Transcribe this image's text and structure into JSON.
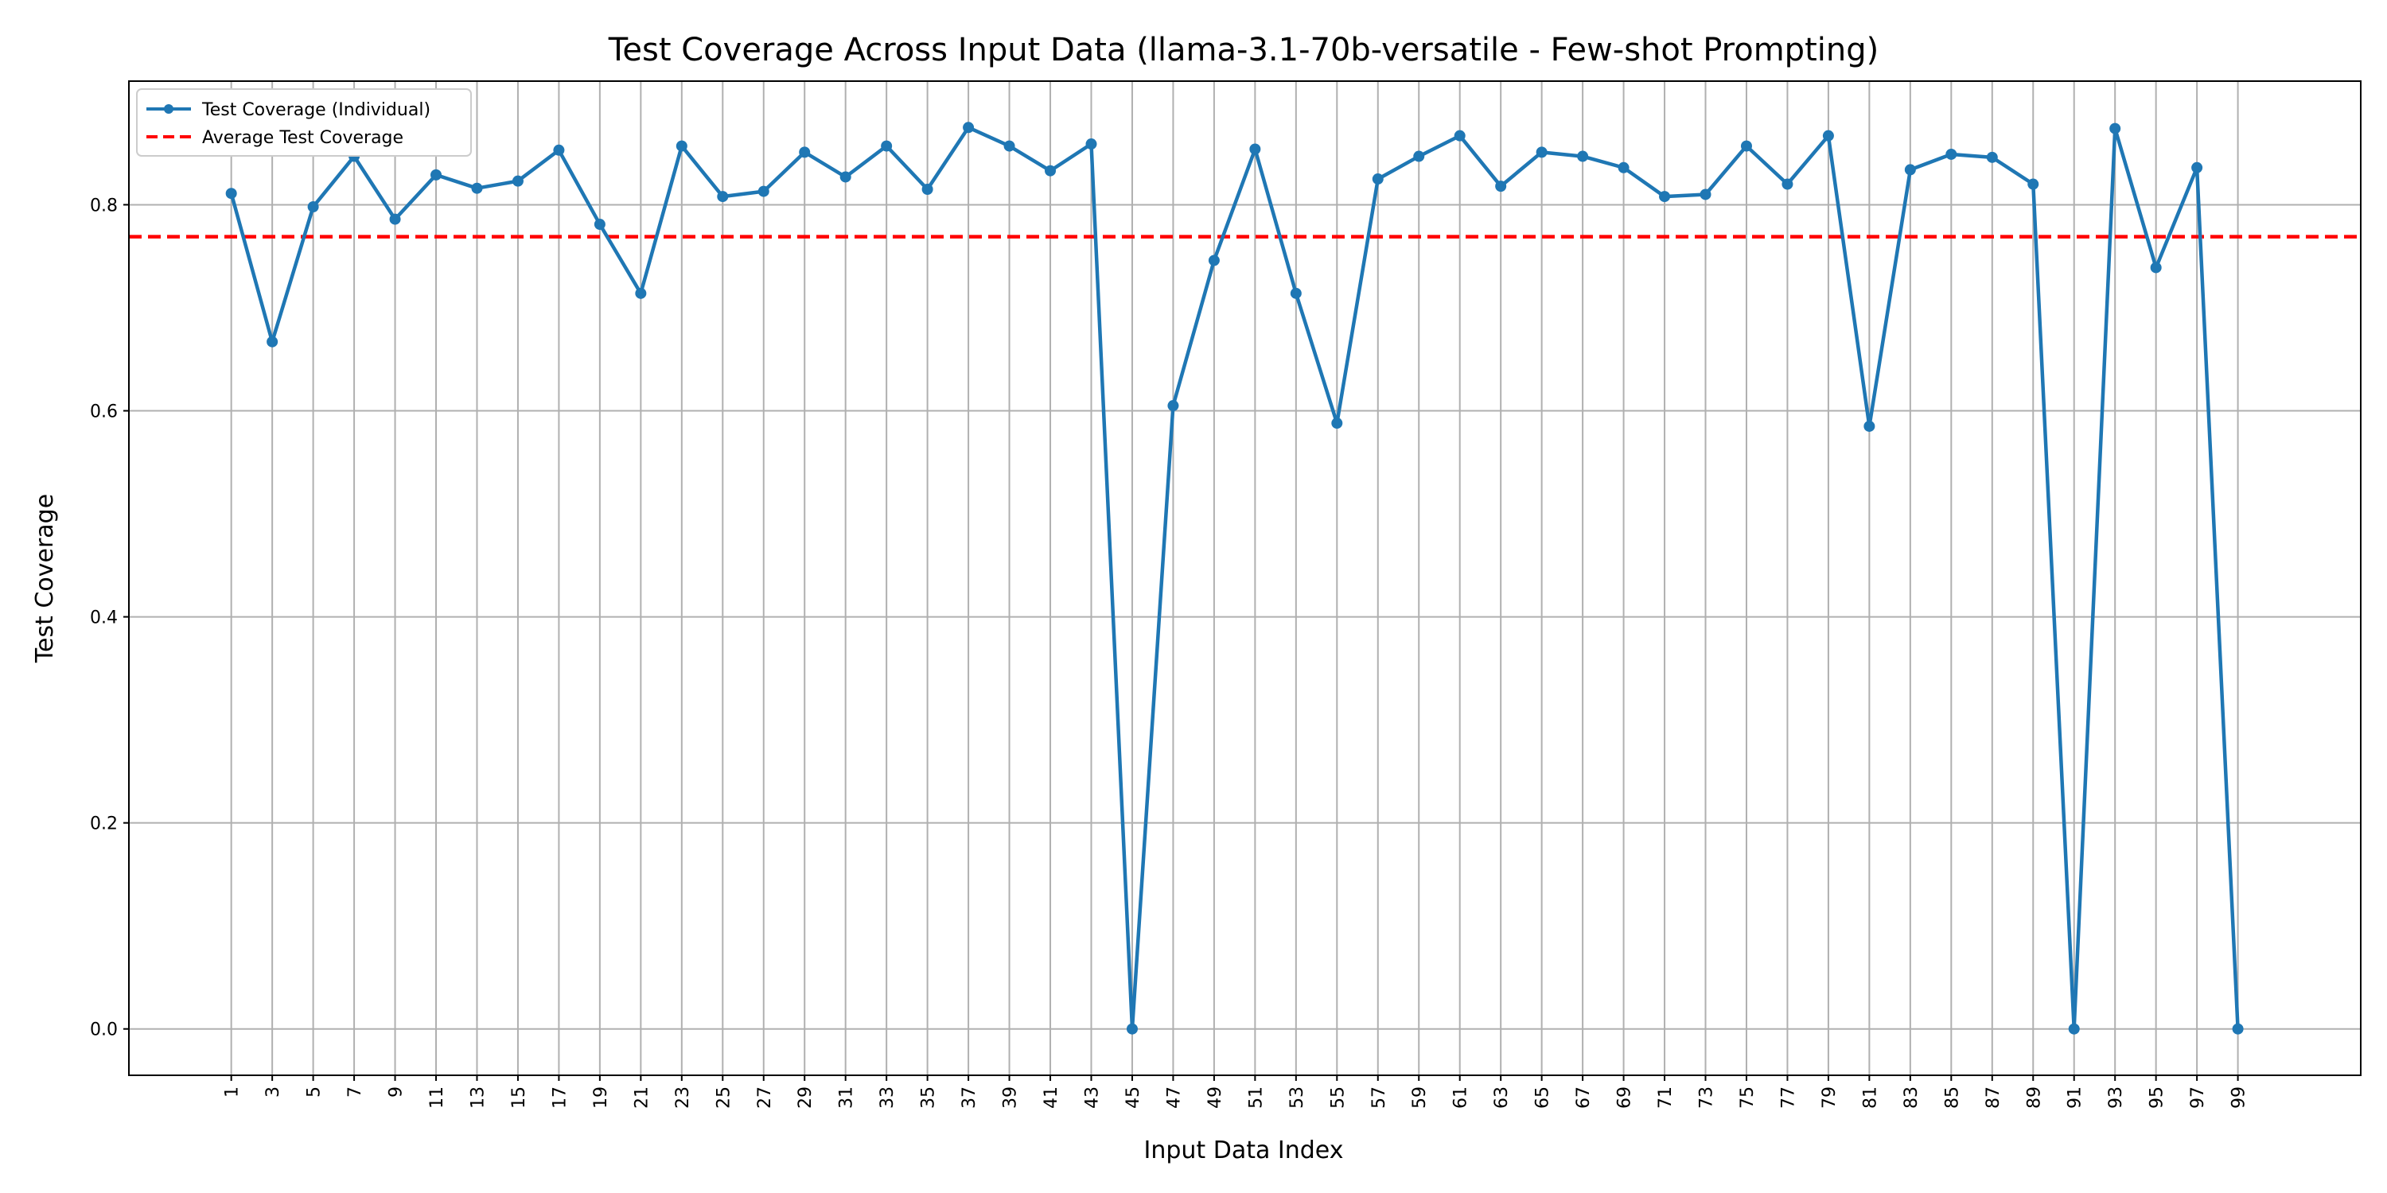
{
  "chart_data": {
    "type": "line",
    "title": "Test Coverage Across Input Data (llama-3.1-70b-versatile - Few-shot Prompting)",
    "xlabel": "Input Data Index",
    "ylabel": "Test Coverage",
    "xlim": [
      -4,
      105
    ],
    "ylim": [
      -0.045,
      0.92
    ],
    "x_ticks": [
      1,
      3,
      5,
      7,
      9,
      11,
      13,
      15,
      17,
      19,
      21,
      23,
      25,
      27,
      29,
      31,
      33,
      35,
      37,
      39,
      41,
      43,
      45,
      47,
      49,
      51,
      53,
      55,
      57,
      59,
      61,
      63,
      65,
      67,
      69,
      71,
      73,
      75,
      77,
      79,
      81,
      83,
      85,
      87,
      89,
      91,
      93,
      95,
      97,
      99
    ],
    "x_tick_labels": [
      "1",
      "3",
      "5",
      "7",
      "9",
      "11",
      "13",
      "15",
      "17",
      "19",
      "21",
      "23",
      "25",
      "27",
      "29",
      "31",
      "33",
      "35",
      "37",
      "39",
      "41",
      "43",
      "45",
      "47",
      "49",
      "51",
      "53",
      "55",
      "57",
      "59",
      "61",
      "63",
      "65",
      "67",
      "69",
      "71",
      "73",
      "75",
      "77",
      "79",
      "81",
      "83",
      "85",
      "87",
      "89",
      "91",
      "93",
      "95",
      "97",
      "99"
    ],
    "y_ticks": [
      0.0,
      0.2,
      0.4,
      0.6,
      0.8
    ],
    "y_tick_labels": [
      "0.0",
      "0.2",
      "0.4",
      "0.6",
      "0.8"
    ],
    "grid": true,
    "legend_position": "top-left",
    "series": [
      {
        "name": "Test Coverage (Individual)",
        "color": "#1f77b4",
        "style": "line-with-markers",
        "x": [
          1,
          3,
          5,
          7,
          9,
          11,
          13,
          15,
          17,
          19,
          21,
          23,
          25,
          27,
          29,
          31,
          33,
          35,
          37,
          39,
          41,
          43,
          45,
          47,
          49,
          51,
          53,
          55,
          57,
          59,
          61,
          63,
          65,
          67,
          69,
          71,
          73,
          75,
          77,
          79,
          81,
          83,
          85,
          87,
          89,
          91,
          93,
          95,
          97,
          99
        ],
        "values": [
          0.811,
          0.667,
          0.798,
          0.847,
          0.786,
          0.829,
          0.816,
          0.823,
          0.853,
          0.781,
          0.714,
          0.857,
          0.808,
          0.813,
          0.851,
          0.827,
          0.857,
          0.815,
          0.875,
          0.857,
          0.833,
          0.859,
          0.0,
          0.605,
          0.746,
          0.854,
          0.714,
          0.588,
          0.825,
          0.847,
          0.867,
          0.818,
          0.851,
          0.847,
          0.836,
          0.808,
          0.81,
          0.857,
          0.82,
          0.867,
          0.585,
          0.834,
          0.849,
          0.846,
          0.82,
          0.0,
          0.874,
          0.739,
          0.836,
          0.0
        ]
      },
      {
        "name": "Average Test Coverage",
        "color": "#ff0000",
        "style": "dashed-horizontal",
        "value": 0.769
      }
    ]
  }
}
